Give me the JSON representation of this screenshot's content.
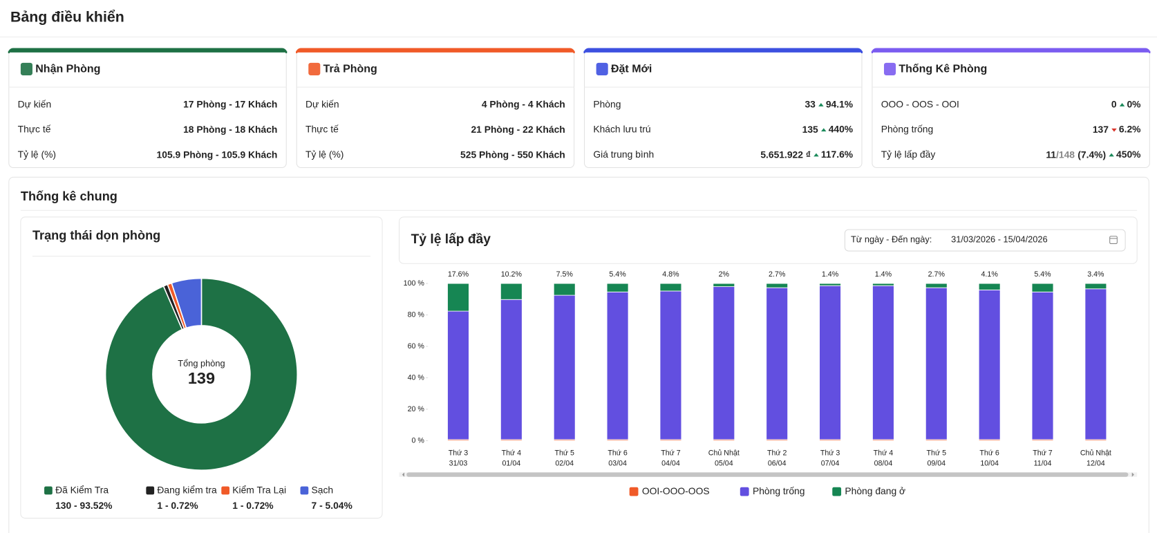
{
  "header": {
    "title": "Bảng điều khiển"
  },
  "cards": [
    {
      "title": "Nhận Phòng",
      "color": "#1e7145",
      "rows": [
        {
          "label": "Dự kiến",
          "value": "17 Phòng - 17 Khách"
        },
        {
          "label": "Thực tế",
          "value": "18 Phòng - 18 Khách"
        },
        {
          "label": "Tỷ lệ (%)",
          "value": "105.9 Phòng - 105.9 Khách"
        }
      ]
    },
    {
      "title": "Trả Phòng",
      "color": "#f05a28",
      "rows": [
        {
          "label": "Dự kiến",
          "value": "4 Phòng - 4 Khách"
        },
        {
          "label": "Thực tế",
          "value": "21 Phòng - 22 Khách"
        },
        {
          "label": "Tỷ lệ (%)",
          "value": "525 Phòng - 550 Khách"
        }
      ]
    },
    {
      "title": "Đặt Mới",
      "color": "#3d50e0",
      "rows": [
        {
          "label": "Phòng",
          "value": "33",
          "change": "94.1%",
          "trend": "up"
        },
        {
          "label": "Khách lưu trú",
          "value": "135",
          "change": "440%",
          "trend": "up"
        },
        {
          "label": "Giá trung bình",
          "value": "5.651.922 ₫",
          "change": "117.6%",
          "trend": "up"
        }
      ]
    },
    {
      "title": "Thống Kê Phòng",
      "color": "#7b5cf0",
      "rows": [
        {
          "label": "OOO - OOS - OOI",
          "value": "0",
          "change": "0%",
          "trend": "up"
        },
        {
          "label": "Phòng trống",
          "value": "137",
          "change": "6.2%",
          "trend": "down"
        },
        {
          "label": "Tỷ lệ lấp đầy",
          "value": "11",
          "value_sub": "/148",
          "value_extra": "(7.4%)",
          "change": "450%",
          "trend": "up"
        }
      ]
    }
  ],
  "section": {
    "title": "Thống kê chung"
  },
  "housekeeping": {
    "type": "pie",
    "title": "Trạng thái dọn phòng",
    "center_label": "Tổng phòng",
    "center_value": 139,
    "categories": [
      "Đã Kiểm Tra",
      "Đang kiểm tra",
      "Kiểm Tra Lại",
      "Sạch"
    ],
    "colors": [
      "#1e7145",
      "#222222",
      "#f05a28",
      "#4a63d8"
    ],
    "values": [
      130,
      1,
      1,
      7
    ],
    "value_labels": [
      "130 - 93.52%",
      "1 - 0.72%",
      "1 - 0.72%",
      "7 - 5.04%"
    ]
  },
  "occupancy": {
    "type": "bar",
    "stacked": true,
    "title": "Tỷ lệ lấp đầy",
    "date_label": "Từ ngày - Đến ngày:",
    "date_range": "31/03/2026 - 15/04/2026",
    "categories": [
      [
        "Thứ 3",
        "31/03"
      ],
      [
        "Thứ 4",
        "01/04"
      ],
      [
        "Thứ 5",
        "02/04"
      ],
      [
        "Thứ 6",
        "03/04"
      ],
      [
        "Thứ 7",
        "04/04"
      ],
      [
        "Chủ Nhật",
        "05/04"
      ],
      [
        "Thứ 2",
        "06/04"
      ],
      [
        "Thứ 3",
        "07/04"
      ],
      [
        "Thứ 4",
        "08/04"
      ],
      [
        "Thứ 5",
        "09/04"
      ],
      [
        "Thứ 6",
        "10/04"
      ],
      [
        "Thứ 7",
        "11/04"
      ],
      [
        "Chủ Nhật",
        "12/04"
      ]
    ],
    "series": [
      {
        "name": "OOI-OOO-OOS",
        "color": "#f05a28",
        "values": [
          0.7,
          0.7,
          0.7,
          0.7,
          0.7,
          0.7,
          0.7,
          0.7,
          0.7,
          0.7,
          0.7,
          0.7,
          0.7
        ]
      },
      {
        "name": "Phòng trống",
        "color": "#624fe0",
        "values": [
          81.7,
          89.1,
          91.8,
          93.9,
          94.5,
          97.3,
          96.6,
          97.9,
          97.9,
          96.6,
          95.2,
          93.9,
          95.9
        ]
      },
      {
        "name": "Phòng đang ở",
        "color": "#168653",
        "values": [
          17.6,
          10.2,
          7.5,
          5.4,
          4.8,
          2,
          2.7,
          1.4,
          1.4,
          2.7,
          4.1,
          5.4,
          3.4
        ],
        "value_labels": [
          "17.6%",
          "10.2%",
          "7.5%",
          "5.4%",
          "4.8%",
          "2%",
          "2.7%",
          "1.4%",
          "1.4%",
          "2.7%",
          "4.1%",
          "5.4%",
          "3.4%"
        ]
      }
    ],
    "ylim": [
      0,
      100
    ],
    "yticks": [
      {
        "value": 0,
        "label": "0 %"
      },
      {
        "value": 20,
        "label": "20 %"
      },
      {
        "value": 40,
        "label": "40 %"
      },
      {
        "value": 60,
        "label": "60 %"
      },
      {
        "value": 80,
        "label": "80 %"
      },
      {
        "value": 100,
        "label": "100 %"
      }
    ]
  }
}
